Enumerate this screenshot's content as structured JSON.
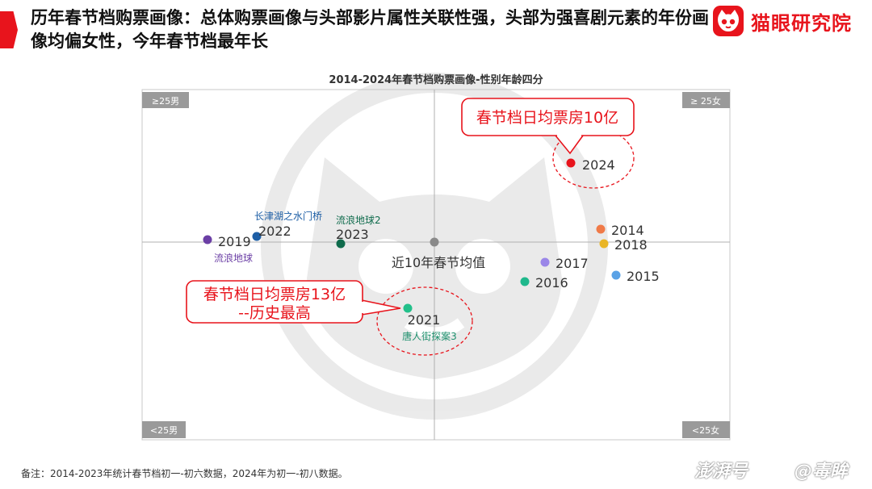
{
  "header": {
    "title": "历年春节档购票画像：总体购票画像与头部影片属性关联性强，头部为强喜剧元素的年份画像均偏女性，今年春节档最年长",
    "logo_text": "猫眼研究院"
  },
  "chart_data": {
    "type": "scatter",
    "title": "2014-2024年春节档购票画像-性别年龄四分",
    "quadrant_labels": {
      "top_left": "≥25男",
      "top_right": "≥ 25女",
      "bottom_left": "<25男",
      "bottom_right": "<25女"
    },
    "center_label": "近10年春节均值",
    "points": [
      {
        "label": "2014",
        "color": "#f07a48"
      },
      {
        "label": "2015",
        "color": "#5aa2e6"
      },
      {
        "label": "2016",
        "color": "#1fb88c"
      },
      {
        "label": "2017",
        "color": "#9a86e8"
      },
      {
        "label": "2018",
        "color": "#e9b526"
      },
      {
        "label": "2019",
        "color": "#6b3fa5",
        "film": "流浪地球",
        "film_color": "#6b3fa5"
      },
      {
        "label": "2021",
        "color": "#22c08a",
        "film": "唐人街探案3",
        "film_color": "#1d8f6c"
      },
      {
        "label": "2022",
        "color": "#1e5fa6",
        "film": "长津湖之水门桥",
        "film_color": "#1e5fa6"
      },
      {
        "label": "2023",
        "color": "#0f6b4c",
        "film": "流浪地球2",
        "film_color": "#0f6b4c"
      },
      {
        "label": "2024",
        "color": "#e8141c"
      }
    ],
    "callouts": [
      {
        "text_lines": [
          "春节档日均票房10亿"
        ],
        "target": "2024"
      },
      {
        "text_lines": [
          "春节档日均票房13亿",
          "--历史最高"
        ],
        "target": "2021"
      }
    ],
    "grid": false
  },
  "footnote": "备注：2014-2023年统计春节档初一-初六数据，2024年为初一-初八数据。",
  "watermark": {
    "left": "澎湃号",
    "right": "@毒眸"
  },
  "colors": {
    "accent": "#e8141c",
    "axis": "#b0b0b0",
    "quadrant_tag": "#9a9a9a"
  }
}
